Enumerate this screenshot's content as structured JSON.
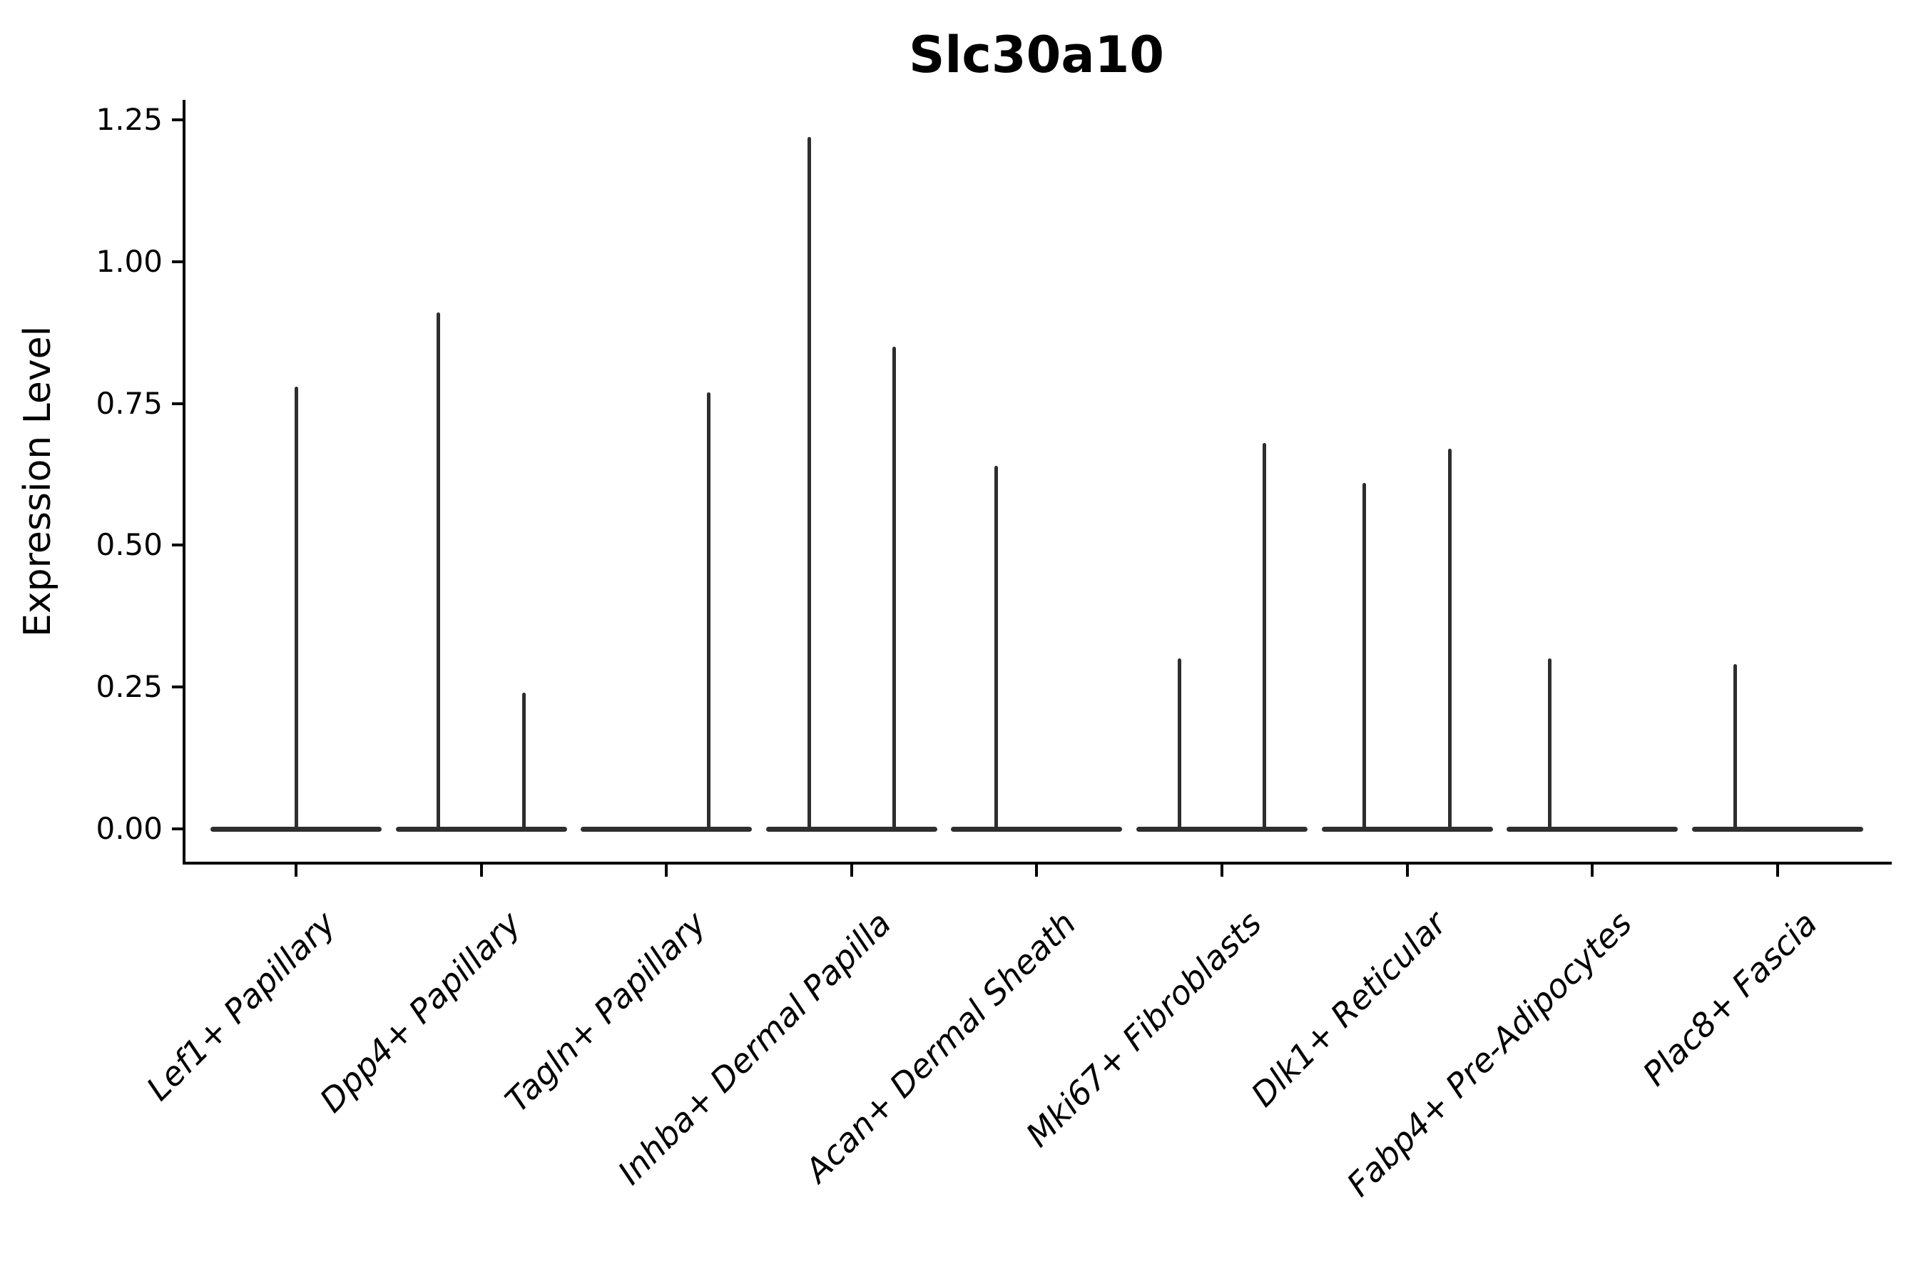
{
  "chart_data": {
    "type": "violin",
    "title": "Slc30a10",
    "xlabel": "",
    "ylabel": "Expression Level",
    "ylim": [
      -0.06,
      1.29
    ],
    "ytick_labels": [
      "0.00",
      "0.25",
      "0.50",
      "0.75",
      "1.00",
      "1.25"
    ],
    "ytick_values": [
      0,
      0.25,
      0.5,
      0.75,
      1.0,
      1.25
    ],
    "grid": false,
    "legend": "none",
    "violin_color": "#2e2e2e",
    "axis_color": "#000000",
    "text_color": "#000000",
    "background_color": "#ffffff",
    "categories": [
      "Lef1+ Papillary",
      "Dpp4+ Papillary",
      "Tagln+ Papillary",
      "Inhba+ Dermal Papilla",
      "Acan+ Dermal Sheath",
      "Mki67+ Fibroblasts",
      "Dlk1+ Reticular",
      "Fabp4+ Pre-Adipocytes",
      "Plac8+ Fascia"
    ],
    "violins": [
      {
        "category": "Lef1+ Papillary",
        "baseline_value": 0,
        "spikes": [
          {
            "offset_frac": 0.0,
            "peak": 0.78
          }
        ]
      },
      {
        "category": "Dpp4+ Papillary",
        "baseline_value": 0,
        "spikes": [
          {
            "offset_frac": -0.23,
            "peak": 0.91
          },
          {
            "offset_frac": 0.23,
            "peak": 0.24
          }
        ]
      },
      {
        "category": "Tagln+ Papillary",
        "baseline_value": 0,
        "spikes": [
          {
            "offset_frac": 0.23,
            "peak": 0.77
          }
        ]
      },
      {
        "category": "Inhba+ Dermal Papilla",
        "baseline_value": 0,
        "spikes": [
          {
            "offset_frac": -0.23,
            "peak": 1.22
          },
          {
            "offset_frac": 0.23,
            "peak": 0.85
          }
        ]
      },
      {
        "category": "Acan+ Dermal Sheath",
        "baseline_value": 0,
        "spikes": [
          {
            "offset_frac": -0.22,
            "peak": 0.64
          }
        ]
      },
      {
        "category": "Mki67+ Fibroblasts",
        "baseline_value": 0,
        "spikes": [
          {
            "offset_frac": -0.23,
            "peak": 0.3
          },
          {
            "offset_frac": 0.23,
            "peak": 0.68
          }
        ]
      },
      {
        "category": "Dlk1+ Reticular",
        "baseline_value": 0,
        "spikes": [
          {
            "offset_frac": -0.23,
            "peak": 0.61
          },
          {
            "offset_frac": 0.23,
            "peak": 0.67
          }
        ]
      },
      {
        "category": "Fabp4+ Pre-Adipocytes",
        "baseline_value": 0,
        "spikes": [
          {
            "offset_frac": -0.23,
            "peak": 0.3
          }
        ]
      },
      {
        "category": "Plac8+ Fascia",
        "baseline_value": 0,
        "spikes": [
          {
            "offset_frac": -0.23,
            "peak": 0.29
          }
        ]
      }
    ]
  }
}
